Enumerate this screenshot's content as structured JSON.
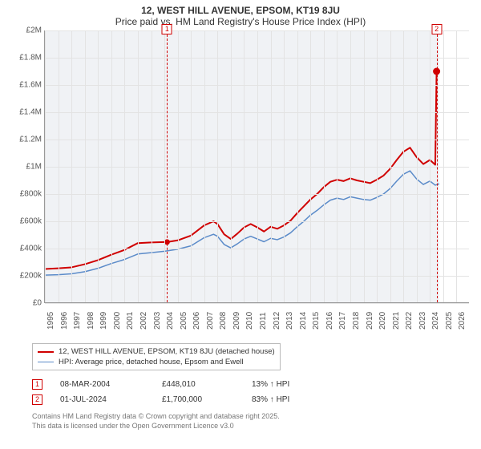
{
  "title_line1": "12, WEST HILL AVENUE, EPSOM, KT19 8JU",
  "title_line2": "Price paid vs. HM Land Registry's House Price Index (HPI)",
  "chart": {
    "type": "line",
    "background_color": "#ffffff",
    "plot_band_color": "#f0f2f5",
    "grid_color": "#e3e3e3",
    "axis_color": "#999999",
    "x_min": 1995,
    "x_max": 2027,
    "x_ticks": [
      1995,
      1996,
      1997,
      1998,
      1999,
      2000,
      2001,
      2002,
      2003,
      2004,
      2005,
      2006,
      2007,
      2008,
      2009,
      2010,
      2011,
      2012,
      2013,
      2014,
      2015,
      2016,
      2017,
      2018,
      2019,
      2020,
      2021,
      2022,
      2023,
      2024,
      2025,
      2026
    ],
    "data_band": {
      "x_start": 1995,
      "x_end": 2024.7
    },
    "y_min": 0,
    "y_max": 2000000,
    "y_ticks": [
      {
        "v": 0,
        "label": "£0"
      },
      {
        "v": 200000,
        "label": "£200k"
      },
      {
        "v": 400000,
        "label": "£400k"
      },
      {
        "v": 600000,
        "label": "£600k"
      },
      {
        "v": 800000,
        "label": "£800k"
      },
      {
        "v": 1000000,
        "label": "£1M"
      },
      {
        "v": 1200000,
        "label": "£1.2M"
      },
      {
        "v": 1400000,
        "label": "£1.4M"
      },
      {
        "v": 1600000,
        "label": "£1.6M"
      },
      {
        "v": 1800000,
        "label": "£1.8M"
      },
      {
        "v": 2000000,
        "label": "£2M"
      }
    ],
    "label_fontsize": 10,
    "label_color": "#555555",
    "series": [
      {
        "id": "property",
        "color": "#d00000",
        "width": 2,
        "data": [
          [
            1995,
            250000
          ],
          [
            1996,
            255000
          ],
          [
            1997,
            262000
          ],
          [
            1998,
            285000
          ],
          [
            1999,
            315000
          ],
          [
            2000,
            355000
          ],
          [
            2001,
            390000
          ],
          [
            2002,
            440000
          ],
          [
            2003,
            445000
          ],
          [
            2004,
            448000
          ],
          [
            2004.2,
            448010
          ],
          [
            2005,
            460000
          ],
          [
            2006,
            495000
          ],
          [
            2007,
            570000
          ],
          [
            2007.7,
            600000
          ],
          [
            2008,
            580000
          ],
          [
            2008.5,
            505000
          ],
          [
            2009,
            470000
          ],
          [
            2009.5,
            510000
          ],
          [
            2010,
            555000
          ],
          [
            2010.5,
            580000
          ],
          [
            2011,
            555000
          ],
          [
            2011.5,
            525000
          ],
          [
            2012,
            560000
          ],
          [
            2012.5,
            545000
          ],
          [
            2013,
            570000
          ],
          [
            2013.5,
            605000
          ],
          [
            2014,
            660000
          ],
          [
            2014.5,
            710000
          ],
          [
            2015,
            760000
          ],
          [
            2015.5,
            800000
          ],
          [
            2016,
            850000
          ],
          [
            2016.5,
            890000
          ],
          [
            2017,
            905000
          ],
          [
            2017.5,
            895000
          ],
          [
            2018,
            915000
          ],
          [
            2018.5,
            900000
          ],
          [
            2019,
            890000
          ],
          [
            2019.5,
            880000
          ],
          [
            2020,
            905000
          ],
          [
            2020.5,
            935000
          ],
          [
            2021,
            985000
          ],
          [
            2021.5,
            1050000
          ],
          [
            2022,
            1110000
          ],
          [
            2022.5,
            1140000
          ],
          [
            2023,
            1070000
          ],
          [
            2023.5,
            1020000
          ],
          [
            2024,
            1050000
          ],
          [
            2024.4,
            1015000
          ],
          [
            2024.5,
            1700000
          ]
        ]
      },
      {
        "id": "hpi",
        "color": "#5b8bc9",
        "width": 1.5,
        "data": [
          [
            1995,
            205000
          ],
          [
            1996,
            208000
          ],
          [
            1997,
            215000
          ],
          [
            1998,
            230000
          ],
          [
            1999,
            255000
          ],
          [
            2000,
            290000
          ],
          [
            2001,
            320000
          ],
          [
            2002,
            360000
          ],
          [
            2003,
            370000
          ],
          [
            2004,
            380000
          ],
          [
            2005,
            395000
          ],
          [
            2006,
            420000
          ],
          [
            2007,
            480000
          ],
          [
            2007.7,
            505000
          ],
          [
            2008,
            490000
          ],
          [
            2008.5,
            430000
          ],
          [
            2009,
            405000
          ],
          [
            2009.5,
            435000
          ],
          [
            2010,
            470000
          ],
          [
            2010.5,
            490000
          ],
          [
            2011,
            470000
          ],
          [
            2011.5,
            450000
          ],
          [
            2012,
            475000
          ],
          [
            2012.5,
            465000
          ],
          [
            2013,
            485000
          ],
          [
            2013.5,
            515000
          ],
          [
            2014,
            560000
          ],
          [
            2014.5,
            600000
          ],
          [
            2015,
            645000
          ],
          [
            2015.5,
            680000
          ],
          [
            2016,
            720000
          ],
          [
            2016.5,
            755000
          ],
          [
            2017,
            770000
          ],
          [
            2017.5,
            760000
          ],
          [
            2018,
            780000
          ],
          [
            2018.5,
            770000
          ],
          [
            2019,
            760000
          ],
          [
            2019.5,
            755000
          ],
          [
            2020,
            775000
          ],
          [
            2020.5,
            800000
          ],
          [
            2021,
            840000
          ],
          [
            2021.5,
            895000
          ],
          [
            2022,
            945000
          ],
          [
            2022.5,
            970000
          ],
          [
            2023,
            910000
          ],
          [
            2023.5,
            870000
          ],
          [
            2024,
            895000
          ],
          [
            2024.4,
            865000
          ],
          [
            2024.7,
            875000
          ]
        ]
      }
    ],
    "markers": [
      {
        "n": "1",
        "x": 2004.2,
        "y": 448010,
        "box_color": "#d00000",
        "line_color": "#d00000",
        "dot_radius": 3.5
      },
      {
        "n": "2",
        "x": 2024.5,
        "y": 1700000,
        "box_color": "#d00000",
        "line_color": "#d00000",
        "dot_radius": 4.5
      }
    ]
  },
  "legend": {
    "items": [
      {
        "color": "#d00000",
        "width": 2,
        "label": "12, WEST HILL AVENUE, EPSOM, KT19 8JU (detached house)"
      },
      {
        "color": "#5b8bc9",
        "width": 1.5,
        "label": "HPI: Average price, detached house, Epsom and Ewell"
      }
    ]
  },
  "transactions": [
    {
      "n": "1",
      "date": "08-MAR-2004",
      "price": "£448,010",
      "pct": "13% ↑ HPI",
      "color": "#d00000"
    },
    {
      "n": "2",
      "date": "01-JUL-2024",
      "price": "£1,700,000",
      "pct": "83% ↑ HPI",
      "color": "#d00000"
    }
  ],
  "copyright": {
    "line1": "Contains HM Land Registry data © Crown copyright and database right 2025.",
    "line2": "This data is licensed under the Open Government Licence v3.0"
  }
}
